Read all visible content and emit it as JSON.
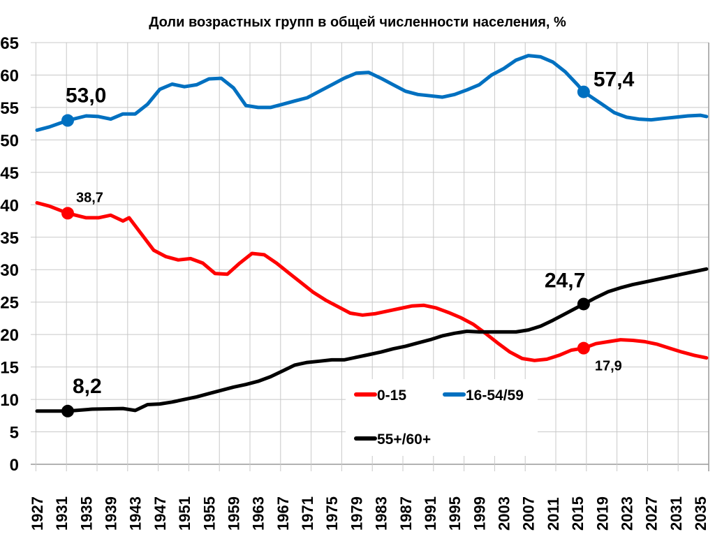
{
  "chart_data": {
    "type": "line",
    "title": "Доли возрастных групп в общей численности населения, %",
    "xlabel": "",
    "ylabel": "",
    "xlim": [
      1927,
      2036
    ],
    "ylim": [
      0,
      65
    ],
    "yticks": [
      0,
      5,
      10,
      15,
      20,
      25,
      30,
      35,
      40,
      45,
      50,
      55,
      60,
      65
    ],
    "xticks": [
      1927,
      1931,
      1935,
      1939,
      1943,
      1947,
      1951,
      1955,
      1959,
      1963,
      1967,
      1971,
      1975,
      1979,
      1983,
      1987,
      1991,
      1995,
      1999,
      2003,
      2007,
      2011,
      2015,
      2019,
      2023,
      2027,
      2031,
      2035
    ],
    "grid": true,
    "legend_position": "bottom-center",
    "series": [
      {
        "name": "0-15",
        "color": "#ff0000",
        "x": [
          1927,
          1929,
          1932,
          1935,
          1937,
          1939,
          1941,
          1942,
          1944,
          1946,
          1948,
          1950,
          1952,
          1954,
          1956,
          1958,
          1960,
          1962,
          1964,
          1966,
          1968,
          1970,
          1972,
          1974,
          1976,
          1978,
          1980,
          1982,
          1984,
          1986,
          1988,
          1990,
          1992,
          1994,
          1996,
          1998,
          2000,
          2002,
          2004,
          2006,
          2008,
          2010,
          2012,
          2014,
          2016,
          2018,
          2020,
          2022,
          2024,
          2026,
          2028,
          2030,
          2032,
          2034,
          2036
        ],
        "y": [
          40.3,
          39.8,
          38.7,
          38,
          38,
          38.4,
          37.5,
          38,
          35.5,
          33,
          32,
          31.5,
          31.7,
          31,
          29.4,
          29.3,
          31,
          32.5,
          32.3,
          31,
          29.5,
          28,
          26.5,
          25.3,
          24.3,
          23.3,
          23,
          23.2,
          23.6,
          24,
          24.4,
          24.5,
          24.1,
          23.4,
          22.6,
          21.6,
          20.2,
          18.7,
          17.3,
          16.3,
          16,
          16.2,
          16.8,
          17.6,
          17.9,
          18.6,
          18.9,
          19.2,
          19.1,
          18.9,
          18.5,
          17.9,
          17.3,
          16.8,
          16.4
        ],
        "highlights": [
          {
            "x": 1932,
            "y": 38.7,
            "label": "38,7"
          },
          {
            "x": 2016,
            "y": 17.9,
            "label": "17,9"
          }
        ]
      },
      {
        "name": "16-54/59",
        "color": "#0070c0",
        "x": [
          1927,
          1929,
          1932,
          1935,
          1937,
          1939,
          1941,
          1943,
          1945,
          1947,
          1949,
          1951,
          1953,
          1955,
          1957,
          1959,
          1961,
          1963,
          1965,
          1967,
          1969,
          1971,
          1973,
          1975,
          1977,
          1979,
          1981,
          1983,
          1985,
          1987,
          1989,
          1991,
          1993,
          1995,
          1997,
          1999,
          2001,
          2003,
          2005,
          2007,
          2009,
          2011,
          2013,
          2015,
          2016,
          2019,
          2021,
          2023,
          2025,
          2027,
          2029,
          2031,
          2033,
          2035,
          2036
        ],
        "y": [
          51.5,
          52,
          53,
          53.7,
          53.6,
          53.2,
          54,
          54,
          55.5,
          57.8,
          58.6,
          58.2,
          58.5,
          59.4,
          59.5,
          58,
          55.3,
          55,
          55,
          55.5,
          56,
          56.5,
          57.5,
          58.5,
          59.5,
          60.3,
          60.4,
          59.5,
          58.5,
          57.5,
          57,
          56.8,
          56.6,
          57,
          57.7,
          58.5,
          60,
          61,
          62.3,
          63,
          62.8,
          62,
          60.5,
          58.5,
          57.4,
          55.5,
          54.2,
          53.5,
          53.2,
          53.1,
          53.3,
          53.5,
          53.7,
          53.8,
          53.6
        ],
        "highlights": [
          {
            "x": 1932,
            "y": 53.0,
            "label": "53,0"
          },
          {
            "x": 2016,
            "y": 57.4,
            "label": "57,4"
          }
        ]
      },
      {
        "name": "55+/60+",
        "color": "#000000",
        "x": [
          1927,
          1932,
          1936,
          1941,
          1943,
          1945,
          1947,
          1949,
          1951,
          1953,
          1955,
          1957,
          1959,
          1961,
          1963,
          1965,
          1967,
          1969,
          1971,
          1973,
          1975,
          1977,
          1979,
          1981,
          1983,
          1985,
          1987,
          1989,
          1991,
          1993,
          1995,
          1997,
          1999,
          2001,
          2003,
          2005,
          2007,
          2009,
          2011,
          2013,
          2016,
          2018,
          2020,
          2022,
          2024,
          2026,
          2028,
          2030,
          2032,
          2034,
          2036
        ],
        "y": [
          8.2,
          8.2,
          8.5,
          8.6,
          8.3,
          9.2,
          9.3,
          9.6,
          10,
          10.4,
          10.9,
          11.4,
          11.9,
          12.3,
          12.8,
          13.5,
          14.4,
          15.3,
          15.7,
          15.9,
          16.1,
          16.1,
          16.5,
          16.9,
          17.3,
          17.8,
          18.2,
          18.7,
          19.2,
          19.8,
          20.2,
          20.5,
          20.4,
          20.4,
          20.4,
          20.4,
          20.7,
          21.3,
          22.2,
          23.2,
          24.7,
          25.7,
          26.6,
          27.2,
          27.7,
          28.1,
          28.5,
          28.9,
          29.3,
          29.7,
          30.1
        ],
        "highlights": [
          {
            "x": 1932,
            "y": 8.2,
            "label": "8,2"
          },
          {
            "x": 2016,
            "y": 24.7,
            "label": "24,7"
          }
        ]
      }
    ]
  }
}
